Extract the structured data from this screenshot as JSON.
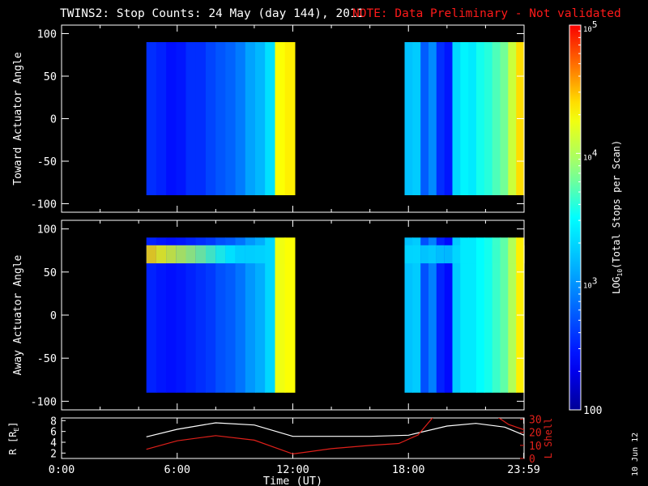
{
  "title": "TWINS2: Stop Counts: 24 May (day 144), 2011",
  "note": "NOTE: Data Preliminary - Not validated",
  "stamp": "10 Jun 12",
  "colors": {
    "background": "#000000",
    "axes": "#ffffff",
    "note": "#ff1a1a",
    "r_line": "#ffffff",
    "l_shell_line": "#e0201a"
  },
  "chart_data": [
    {
      "id": "toward",
      "type": "heatmap",
      "ylabel": "Toward Actuator Angle",
      "xlim": [
        0,
        24
      ],
      "ylim": [
        -110,
        110
      ],
      "yticks": [
        {
          "v": 100,
          "label": "100"
        },
        {
          "v": 50,
          "label": "50"
        },
        {
          "v": 0,
          "label": "0"
        },
        {
          "v": -50,
          "label": "-50"
        },
        {
          "v": -100,
          "label": "-100"
        }
      ],
      "data_extent": {
        "angle_min": -90,
        "angle_max": 90
      },
      "segments": [
        {
          "t0": 4.4,
          "t1": 12.1,
          "log_counts": [
            2.55,
            2.5,
            2.42,
            2.45,
            2.55,
            2.55,
            2.65,
            2.72,
            2.78,
            2.88,
            3.05,
            3.15,
            3.35,
            4.3,
            4.35
          ]
        },
        {
          "t0": 17.8,
          "t1": 24.0,
          "log_counts": [
            3.2,
            3.25,
            2.75,
            2.95,
            2.55,
            2.45,
            3.3,
            3.45,
            3.4,
            3.55,
            3.6,
            3.7,
            3.8,
            4.1,
            4.4
          ]
        }
      ]
    },
    {
      "id": "away",
      "type": "heatmap",
      "ylabel": "Away Actuator Angle",
      "xlim": [
        0,
        24
      ],
      "ylim": [
        -110,
        110
      ],
      "yticks": [
        {
          "v": 100,
          "label": "100"
        },
        {
          "v": 50,
          "label": "50"
        },
        {
          "v": 0,
          "label": "0"
        },
        {
          "v": -50,
          "label": "-50"
        },
        {
          "v": -100,
          "label": "-100"
        }
      ],
      "data_extent": {
        "angle_min": -90,
        "angle_max": 90
      },
      "band": {
        "angle": 72,
        "log_peak_start": 4.4,
        "log_peak_end": 3.3
      },
      "segments": [
        {
          "t0": 4.4,
          "t1": 12.1,
          "log_counts": [
            2.5,
            2.45,
            2.42,
            2.45,
            2.5,
            2.55,
            2.6,
            2.7,
            2.75,
            2.85,
            3.0,
            3.1,
            3.3,
            4.25,
            4.3
          ]
        },
        {
          "t0": 17.8,
          "t1": 24.0,
          "log_counts": [
            3.2,
            3.25,
            2.7,
            2.9,
            2.5,
            2.4,
            3.25,
            3.4,
            3.4,
            3.5,
            3.55,
            3.65,
            3.75,
            4.0,
            4.35
          ]
        }
      ]
    },
    {
      "id": "orbit",
      "type": "line",
      "xlabel": "Time (UT)",
      "xlim": [
        0,
        24
      ],
      "xticks": [
        {
          "v": 0,
          "label": "0:00"
        },
        {
          "v": 6,
          "label": "6:00"
        },
        {
          "v": 12,
          "label": "12:00"
        },
        {
          "v": 18,
          "label": "18:00"
        },
        {
          "v": 23.983,
          "label": "23:59"
        }
      ],
      "left_axis": {
        "label": "R [R",
        "label_sub": "E",
        "label_end": "]",
        "ylim": [
          1,
          8.5
        ],
        "ticks": [
          {
            "v": 8,
            "label": "8"
          },
          {
            "v": 6,
            "label": "6"
          },
          {
            "v": 4,
            "label": "4"
          },
          {
            "v": 2,
            "label": "2"
          }
        ]
      },
      "right_axis": {
        "label": "L Shell",
        "ylim": [
          0,
          31
        ],
        "ticks": [
          {
            "v": 30,
            "label": "30"
          },
          {
            "v": 20,
            "label": "20"
          },
          {
            "v": 10,
            "label": "10"
          },
          {
            "v": 0,
            "label": "0"
          }
        ]
      },
      "series": [
        {
          "axis": "left",
          "x": [
            4.4,
            6,
            8,
            10,
            12,
            14,
            16,
            18,
            20,
            21.5,
            23,
            24
          ],
          "y": [
            5.0,
            6.4,
            7.6,
            7.2,
            5.1,
            5.1,
            5.1,
            5.3,
            7.0,
            7.5,
            6.8,
            5.3
          ]
        },
        {
          "axis": "right",
          "x": [
            4.4,
            6,
            8,
            10,
            12,
            14,
            16,
            17.5,
            18.5,
            19.3
          ],
          "y": [
            7,
            13.5,
            17.5,
            14,
            3.5,
            7.5,
            10,
            11.5,
            18,
            32
          ]
        },
        {
          "axis": "right",
          "x": [
            22.6,
            23.2,
            24
          ],
          "y": [
            32,
            26,
            22
          ]
        }
      ]
    }
  ],
  "colorbar": {
    "label": "LOG",
    "label_sub": "10",
    "label_end": "(Total Stops per Scan)",
    "range": [
      2,
      5
    ],
    "ticks": [
      {
        "v": 5,
        "base": "10",
        "exp": "5"
      },
      {
        "v": 4,
        "base": "10",
        "exp": "4"
      },
      {
        "v": 3,
        "base": "10",
        "exp": "3"
      },
      {
        "v": 2,
        "base": "100",
        "exp": ""
      }
    ]
  }
}
